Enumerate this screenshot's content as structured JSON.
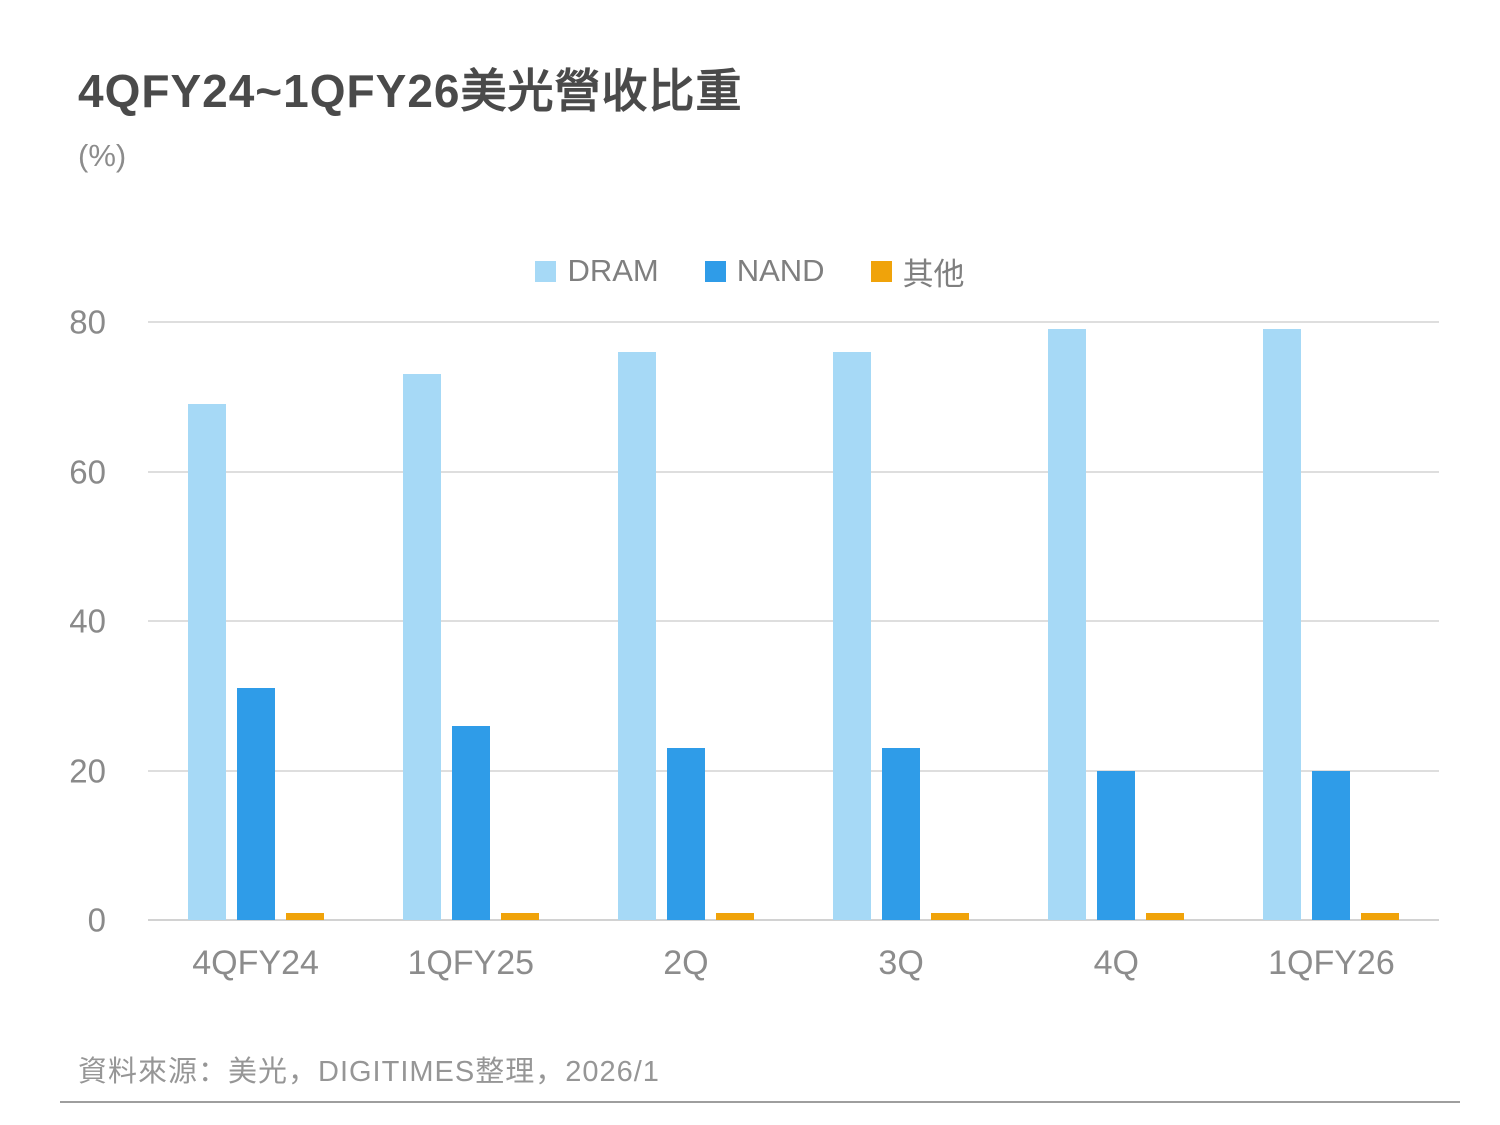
{
  "header": {
    "title": "4QFY24~1QFY26美光營收比重",
    "unit_label": "(%)"
  },
  "chart_data": {
    "type": "bar",
    "title": "4QFY24~1QFY26美光營收比重",
    "categories": [
      "4QFY24",
      "1QFY25",
      "2Q",
      "3Q",
      "4Q",
      "1QFY26"
    ],
    "series": [
      {
        "name": "DRAM",
        "color": "#a6d9f6",
        "values": [
          69,
          73,
          76,
          76,
          79,
          79
        ]
      },
      {
        "name": "NAND",
        "color": "#2f9ce8",
        "values": [
          31,
          26,
          23,
          23,
          20,
          20
        ]
      },
      {
        "name": "其他",
        "color": "#f0a30a",
        "values": [
          1,
          1,
          1,
          1,
          1,
          1
        ]
      }
    ],
    "xlabel": "",
    "ylabel": "(%)",
    "ylim": [
      0,
      80
    ],
    "yticks": [
      0,
      20,
      40,
      60,
      80
    ],
    "grid": true,
    "legend_position": "top-center"
  },
  "footer": {
    "source_note": "資料來源：美光，DIGITIMES整理，2026/1"
  }
}
